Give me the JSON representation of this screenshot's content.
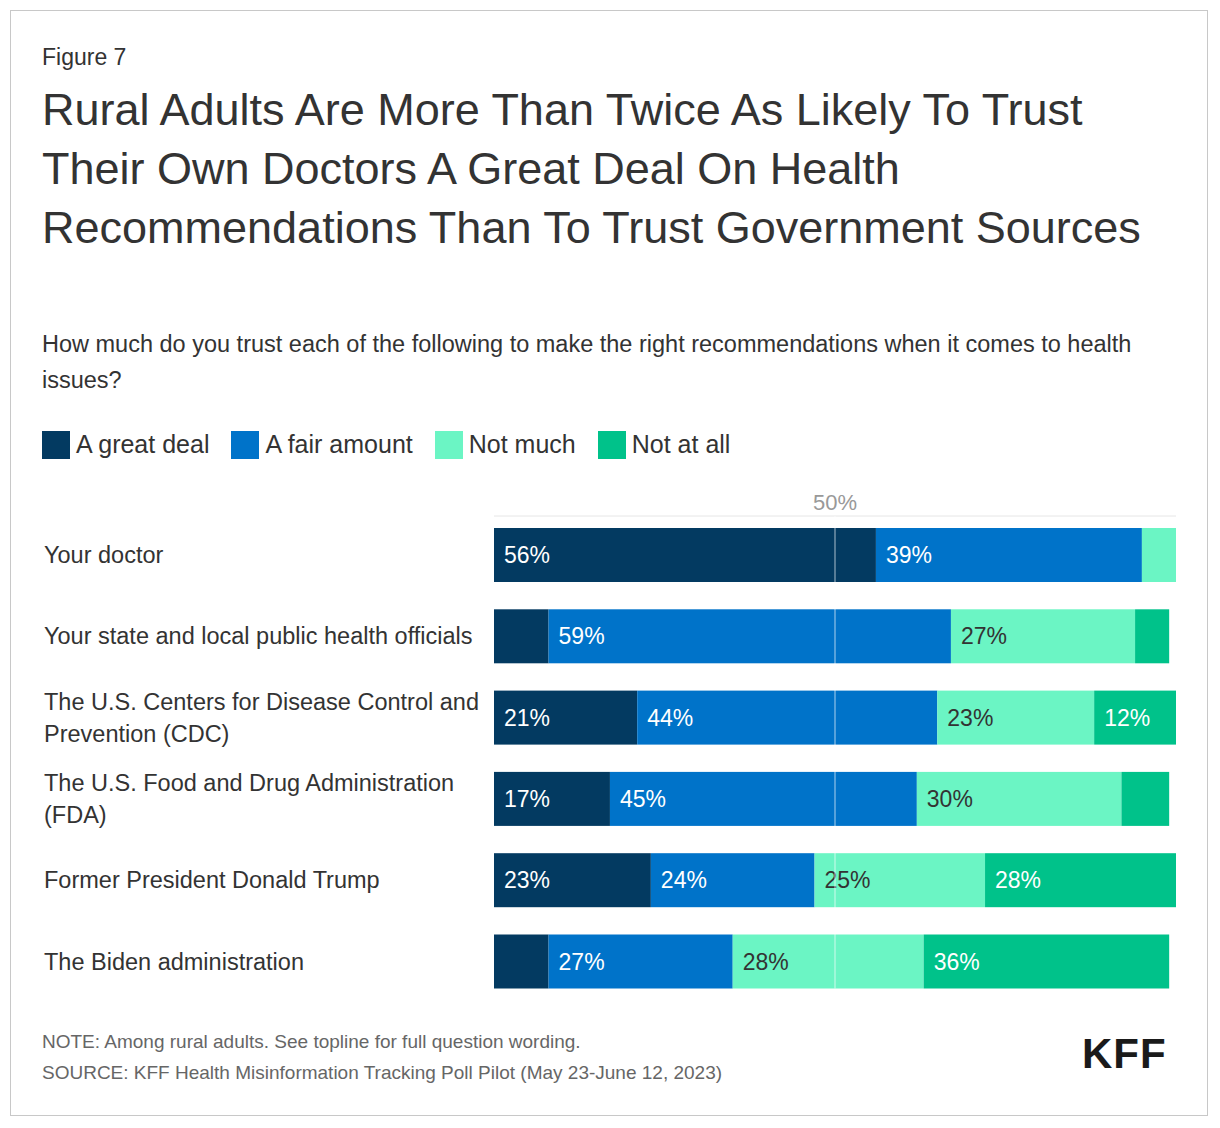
{
  "chart_data": {
    "type": "bar",
    "orientation": "horizontal",
    "stacked": true,
    "data_labels": true,
    "figure_label": "Figure 7",
    "title": "Rural Adults Are More Than Twice As Likely To Trust Their Own Doctors A Great Deal On Health Recommendations Than To Trust Government Sources",
    "subtitle": "How much do you trust each of the following to make the right recommendations when it comes to health issues?",
    "note": "NOTE: Among rural adults. See topline for full question wording.",
    "source": "SOURCE: KFF Health Misinformation Tracking Poll Pilot (May 23-June 12, 2023)",
    "logo": "KFF",
    "categories": [
      "Your doctor",
      "Your state and local public health officials",
      "The U.S. Centers for Disease Control and Prevention (CDC)",
      "The U.S. Food and Drug Administration (FDA)",
      "Former President Donald Trump",
      "The Biden administration"
    ],
    "xlim": [
      0,
      100
    ],
    "xticks": [
      {
        "value": 50,
        "label": "50%"
      }
    ],
    "series": [
      {
        "name": "A great deal",
        "color": "#033a61",
        "values": [
          56,
          8,
          21,
          17,
          23,
          8
        ],
        "value_labels": [
          "56%",
          null,
          "21%",
          "17%",
          "23%",
          null
        ]
      },
      {
        "name": "A fair amount",
        "color": "#0073c9",
        "values": [
          39,
          59,
          44,
          45,
          24,
          27
        ],
        "value_labels": [
          "39%",
          "59%",
          "44%",
          "45%",
          "24%",
          "27%"
        ]
      },
      {
        "name": "Not much",
        "color": "#6bf5c4",
        "values": [
          5,
          27,
          23,
          30,
          25,
          28
        ],
        "value_labels": [
          null,
          "27%",
          "23%",
          "30%",
          "25%",
          "28%"
        ]
      },
      {
        "name": "Not at all",
        "color": "#00c28a",
        "values": [
          0,
          5,
          12,
          7,
          28,
          36
        ],
        "value_labels": [
          null,
          null,
          "12%",
          null,
          "28%",
          "36%"
        ]
      }
    ]
  }
}
